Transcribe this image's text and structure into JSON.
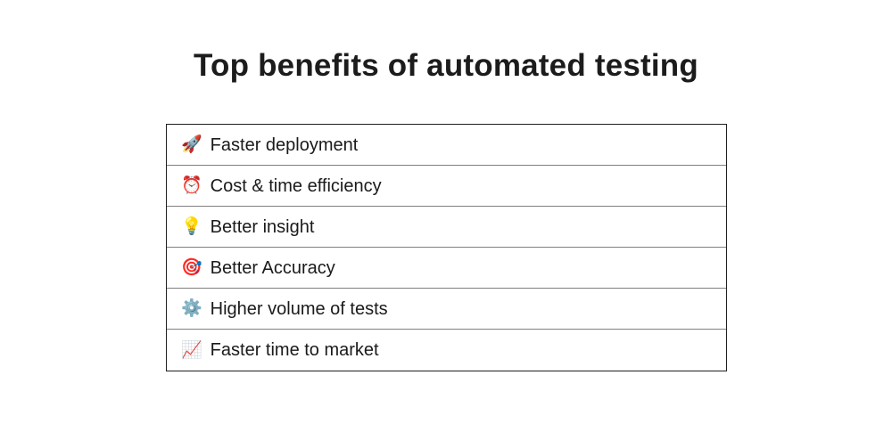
{
  "page": {
    "title": "Top benefits of automated testing"
  },
  "benefits": {
    "items": [
      {
        "emoji": "🚀",
        "icon": "rocket-icon",
        "label": "Faster deployment"
      },
      {
        "emoji": "⏰",
        "icon": "alarm-clock-icon",
        "label": "Cost & time efficiency"
      },
      {
        "emoji": "💡",
        "icon": "light-bulb-icon",
        "label": "Better insight"
      },
      {
        "emoji": "🎯",
        "icon": "target-icon",
        "label": "Better Accuracy"
      },
      {
        "emoji": "⚙️",
        "icon": "gear-icon",
        "label": "Higher volume of tests"
      },
      {
        "emoji": "📈",
        "icon": "chart-increasing-icon",
        "label": "Faster time to market"
      }
    ]
  },
  "colors": {
    "background": "#ffffff",
    "title_text": "#1c1c1c",
    "row_text": "#1a1a1a",
    "table_outer_border": "#1f1f1f",
    "row_divider": "#808080"
  }
}
